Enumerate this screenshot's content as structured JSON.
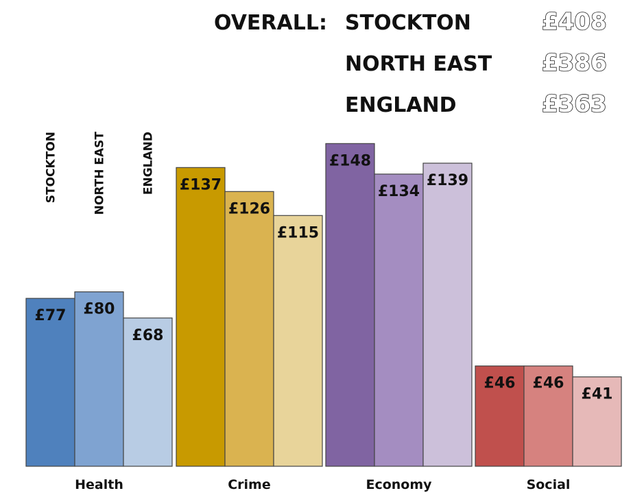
{
  "chart_data": {
    "type": "bar",
    "categories": [
      "Health",
      "Crime",
      "Economy",
      "Social"
    ],
    "series": [
      {
        "name": "STOCKTON",
        "values": [
          77,
          137,
          148,
          46
        ],
        "labels": [
          "£77",
          "£137",
          "£148",
          "£46"
        ]
      },
      {
        "name": "NORTH EAST",
        "values": [
          80,
          126,
          134,
          46
        ],
        "labels": [
          "£80",
          "£126",
          "£134",
          "£46"
        ]
      },
      {
        "name": "ENGLAND",
        "values": [
          68,
          115,
          139,
          41
        ],
        "labels": [
          "£68",
          "£115",
          "£139",
          "£41"
        ]
      }
    ],
    "colors": [
      [
        "#4f81bd",
        "#7fa3d1",
        "#b8cce4"
      ],
      [
        "#c89a00",
        "#dab350",
        "#e8d49a"
      ],
      [
        "#8064a2",
        "#a48dc1",
        "#ccc0da"
      ],
      [
        "#c0504d",
        "#d6827f",
        "#e6b9b8"
      ]
    ],
    "ylim": [
      0,
      160
    ],
    "title": "",
    "xlabel": "",
    "ylabel": "",
    "grid": false,
    "overall": {
      "prefix": "OVERALL:",
      "items": [
        {
          "name": "STOCKTON",
          "label": "£408",
          "value": 408
        },
        {
          "name": "NORTH EAST",
          "label": "£386",
          "value": 386
        },
        {
          "name": "ENGLAND",
          "label": "£363",
          "value": 363
        }
      ]
    }
  }
}
